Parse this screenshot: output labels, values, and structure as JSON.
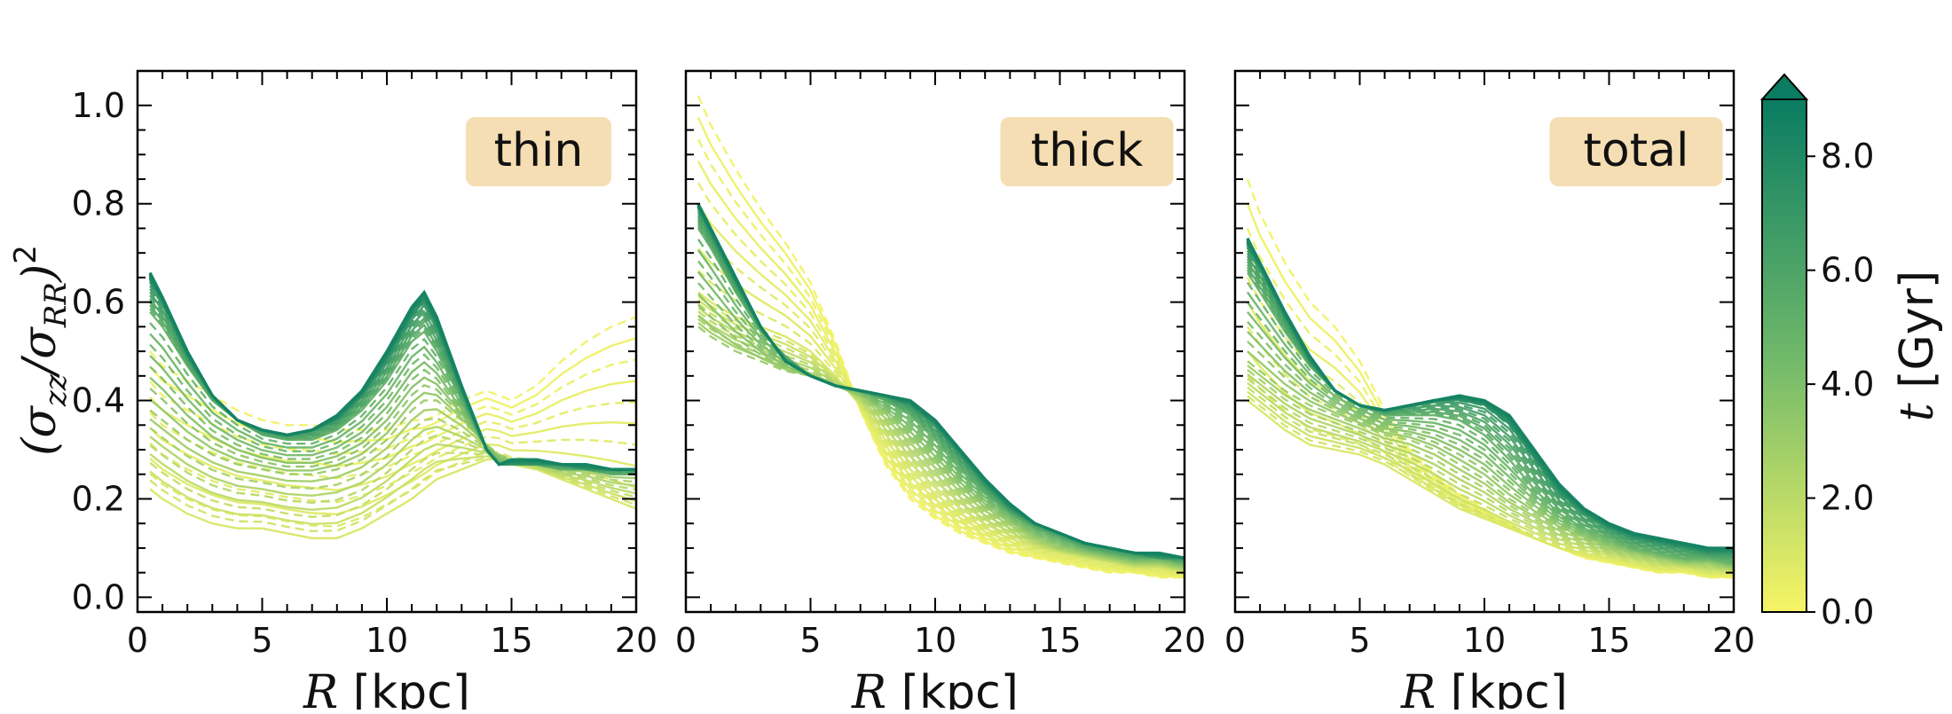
{
  "chart_data": [
    {
      "type": "line",
      "panel_label": "thin",
      "xlabel_var": "R",
      "xlabel_unit": "[kpc]",
      "ylabel": "(σzz/σRR)²",
      "ylabel_parts": {
        "open": "(σ",
        "sub1": "zz",
        "slash": "/σ",
        "sub2": "RR",
        "close": ")",
        "power": "2"
      },
      "xlim": [
        0,
        20
      ],
      "ylim": [
        -0.03,
        1.07
      ],
      "x_ticks": [
        0,
        5,
        10,
        15,
        20
      ],
      "y_ticks": [
        0.0,
        0.2,
        0.4,
        0.6,
        0.8,
        1.0
      ],
      "x_tick_labels": [
        "0",
        "5",
        "10",
        "15",
        "20"
      ],
      "y_tick_labels": [
        "0.0",
        "0.2",
        "0.4",
        "0.6",
        "0.8",
        "1.0"
      ],
      "x": [
        0.5,
        1,
        2,
        3,
        4,
        5,
        6,
        7,
        8,
        9,
        10,
        11,
        11.5,
        12,
        13,
        14,
        14.5,
        15,
        16,
        17,
        18,
        19,
        20
      ],
      "series": [
        {
          "t": 0.2,
          "values": [
            0.5,
            0.47,
            0.44,
            0.41,
            0.38,
            0.36,
            0.35,
            0.35,
            0.34,
            0.34,
            0.34,
            0.36,
            0.36,
            0.37,
            0.4,
            0.42,
            0.41,
            0.4,
            0.43,
            0.48,
            0.52,
            0.55,
            0.57
          ]
        },
        {
          "t": 1.0,
          "values": [
            0.22,
            0.2,
            0.17,
            0.15,
            0.14,
            0.14,
            0.13,
            0.12,
            0.12,
            0.14,
            0.17,
            0.2,
            0.22,
            0.24,
            0.26,
            0.28,
            0.28,
            0.27,
            0.26,
            0.24,
            0.22,
            0.2,
            0.18
          ]
        },
        {
          "t": 3.0,
          "values": [
            0.38,
            0.36,
            0.32,
            0.29,
            0.27,
            0.26,
            0.25,
            0.25,
            0.26,
            0.28,
            0.32,
            0.38,
            0.4,
            0.4,
            0.36,
            0.31,
            0.29,
            0.28,
            0.27,
            0.26,
            0.26,
            0.25,
            0.25
          ]
        },
        {
          "t": 5.0,
          "values": [
            0.58,
            0.55,
            0.47,
            0.4,
            0.36,
            0.33,
            0.32,
            0.32,
            0.34,
            0.38,
            0.44,
            0.52,
            0.54,
            0.5,
            0.4,
            0.3,
            0.27,
            0.27,
            0.27,
            0.26,
            0.26,
            0.25,
            0.25
          ]
        },
        {
          "t": 7.0,
          "values": [
            0.64,
            0.6,
            0.49,
            0.41,
            0.36,
            0.34,
            0.33,
            0.34,
            0.36,
            0.41,
            0.48,
            0.57,
            0.6,
            0.55,
            0.42,
            0.3,
            0.27,
            0.27,
            0.27,
            0.27,
            0.26,
            0.26,
            0.26
          ]
        },
        {
          "t": 8.5,
          "values": [
            0.66,
            0.61,
            0.5,
            0.41,
            0.36,
            0.34,
            0.33,
            0.34,
            0.37,
            0.42,
            0.5,
            0.59,
            0.62,
            0.57,
            0.43,
            0.3,
            0.27,
            0.28,
            0.28,
            0.27,
            0.27,
            0.26,
            0.26
          ]
        }
      ]
    },
    {
      "type": "line",
      "panel_label": "thick",
      "xlabel_var": "R",
      "xlabel_unit": "[kpc]",
      "xlim": [
        0,
        20
      ],
      "ylim": [
        -0.03,
        1.07
      ],
      "x_ticks": [
        0,
        5,
        10,
        15,
        20
      ],
      "x_tick_labels": [
        "0",
        "5",
        "10",
        "15",
        "20"
      ],
      "y_ticks": [
        0.0,
        0.2,
        0.4,
        0.6,
        0.8,
        1.0
      ],
      "x": [
        0.5,
        1,
        2,
        3,
        4,
        5,
        6,
        7,
        8,
        9,
        10,
        11,
        12,
        13,
        14,
        15,
        16,
        17,
        18,
        19,
        20
      ],
      "series": [
        {
          "t": 0.2,
          "values": [
            1.02,
            0.96,
            0.87,
            0.79,
            0.72,
            0.64,
            0.52,
            0.38,
            0.27,
            0.2,
            0.16,
            0.13,
            0.11,
            0.09,
            0.08,
            0.07,
            0.06,
            0.05,
            0.05,
            0.04,
            0.04
          ]
        },
        {
          "t": 1.0,
          "values": [
            0.62,
            0.6,
            0.57,
            0.55,
            0.53,
            0.5,
            0.45,
            0.39,
            0.32,
            0.26,
            0.21,
            0.17,
            0.14,
            0.12,
            0.1,
            0.09,
            0.08,
            0.07,
            0.06,
            0.06,
            0.05
          ]
        },
        {
          "t": 3.0,
          "values": [
            0.55,
            0.53,
            0.5,
            0.48,
            0.46,
            0.45,
            0.43,
            0.41,
            0.37,
            0.32,
            0.27,
            0.22,
            0.18,
            0.15,
            0.12,
            0.1,
            0.09,
            0.08,
            0.07,
            0.07,
            0.06
          ]
        },
        {
          "t": 5.0,
          "values": [
            0.75,
            0.71,
            0.62,
            0.54,
            0.49,
            0.45,
            0.43,
            0.42,
            0.4,
            0.37,
            0.32,
            0.26,
            0.21,
            0.17,
            0.14,
            0.12,
            0.1,
            0.09,
            0.08,
            0.08,
            0.07
          ]
        },
        {
          "t": 7.0,
          "values": [
            0.79,
            0.74,
            0.64,
            0.55,
            0.48,
            0.45,
            0.43,
            0.42,
            0.41,
            0.39,
            0.35,
            0.29,
            0.23,
            0.18,
            0.15,
            0.13,
            0.11,
            0.1,
            0.09,
            0.08,
            0.08
          ]
        },
        {
          "t": 8.5,
          "values": [
            0.8,
            0.75,
            0.65,
            0.55,
            0.48,
            0.45,
            0.43,
            0.42,
            0.41,
            0.4,
            0.36,
            0.3,
            0.24,
            0.19,
            0.15,
            0.13,
            0.11,
            0.1,
            0.09,
            0.09,
            0.08
          ]
        }
      ]
    },
    {
      "type": "line",
      "panel_label": "total",
      "xlabel_var": "R",
      "xlabel_unit": "[kpc]",
      "xlim": [
        0,
        20
      ],
      "ylim": [
        -0.03,
        1.07
      ],
      "x_ticks": [
        0,
        5,
        10,
        15,
        20
      ],
      "x_tick_labels": [
        "0",
        "5",
        "10",
        "15",
        "20"
      ],
      "y_ticks": [
        0.0,
        0.2,
        0.4,
        0.6,
        0.8,
        1.0
      ],
      "x": [
        0.5,
        1,
        2,
        3,
        4,
        5,
        6,
        7,
        8,
        9,
        10,
        11,
        12,
        13,
        14,
        15,
        16,
        17,
        18,
        19,
        20
      ],
      "series": [
        {
          "t": 0.2,
          "values": [
            0.85,
            0.78,
            0.68,
            0.6,
            0.55,
            0.48,
            0.38,
            0.3,
            0.25,
            0.21,
            0.18,
            0.15,
            0.12,
            0.1,
            0.08,
            0.07,
            0.06,
            0.05,
            0.05,
            0.04,
            0.04
          ]
        },
        {
          "t": 1.0,
          "values": [
            0.4,
            0.38,
            0.34,
            0.31,
            0.3,
            0.29,
            0.27,
            0.24,
            0.21,
            0.18,
            0.16,
            0.14,
            0.12,
            0.1,
            0.09,
            0.08,
            0.07,
            0.06,
            0.06,
            0.05,
            0.05
          ]
        },
        {
          "t": 3.0,
          "values": [
            0.48,
            0.46,
            0.42,
            0.39,
            0.37,
            0.35,
            0.33,
            0.32,
            0.3,
            0.27,
            0.24,
            0.2,
            0.17,
            0.14,
            0.12,
            0.1,
            0.09,
            0.08,
            0.07,
            0.07,
            0.06
          ]
        },
        {
          "t": 5.0,
          "values": [
            0.66,
            0.62,
            0.54,
            0.47,
            0.42,
            0.39,
            0.37,
            0.37,
            0.37,
            0.36,
            0.33,
            0.28,
            0.22,
            0.17,
            0.14,
            0.12,
            0.1,
            0.09,
            0.08,
            0.08,
            0.07
          ]
        },
        {
          "t": 7.0,
          "values": [
            0.71,
            0.67,
            0.57,
            0.48,
            0.42,
            0.39,
            0.38,
            0.39,
            0.4,
            0.4,
            0.39,
            0.35,
            0.28,
            0.21,
            0.17,
            0.14,
            0.12,
            0.11,
            0.1,
            0.09,
            0.09
          ]
        },
        {
          "t": 8.5,
          "values": [
            0.73,
            0.68,
            0.58,
            0.49,
            0.42,
            0.39,
            0.38,
            0.39,
            0.4,
            0.41,
            0.4,
            0.37,
            0.3,
            0.23,
            0.18,
            0.15,
            0.13,
            0.12,
            0.11,
            0.1,
            0.1
          ]
        }
      ]
    }
  ],
  "colorbar": {
    "label_var": "t",
    "label_unit": "[Gyr]",
    "range": [
      0.0,
      9.0
    ],
    "extend": "max",
    "ticks": [
      0.0,
      2.0,
      4.0,
      6.0,
      8.0
    ],
    "tick_labels": [
      "0.0",
      "2.0",
      "4.0",
      "6.0",
      "8.0"
    ],
    "color_low": "#f7f566",
    "color_mid": "#6fb86a",
    "color_high": "#0a7c62"
  },
  "colors": {
    "label_box": "#f5deb3",
    "axis": "#000000"
  }
}
